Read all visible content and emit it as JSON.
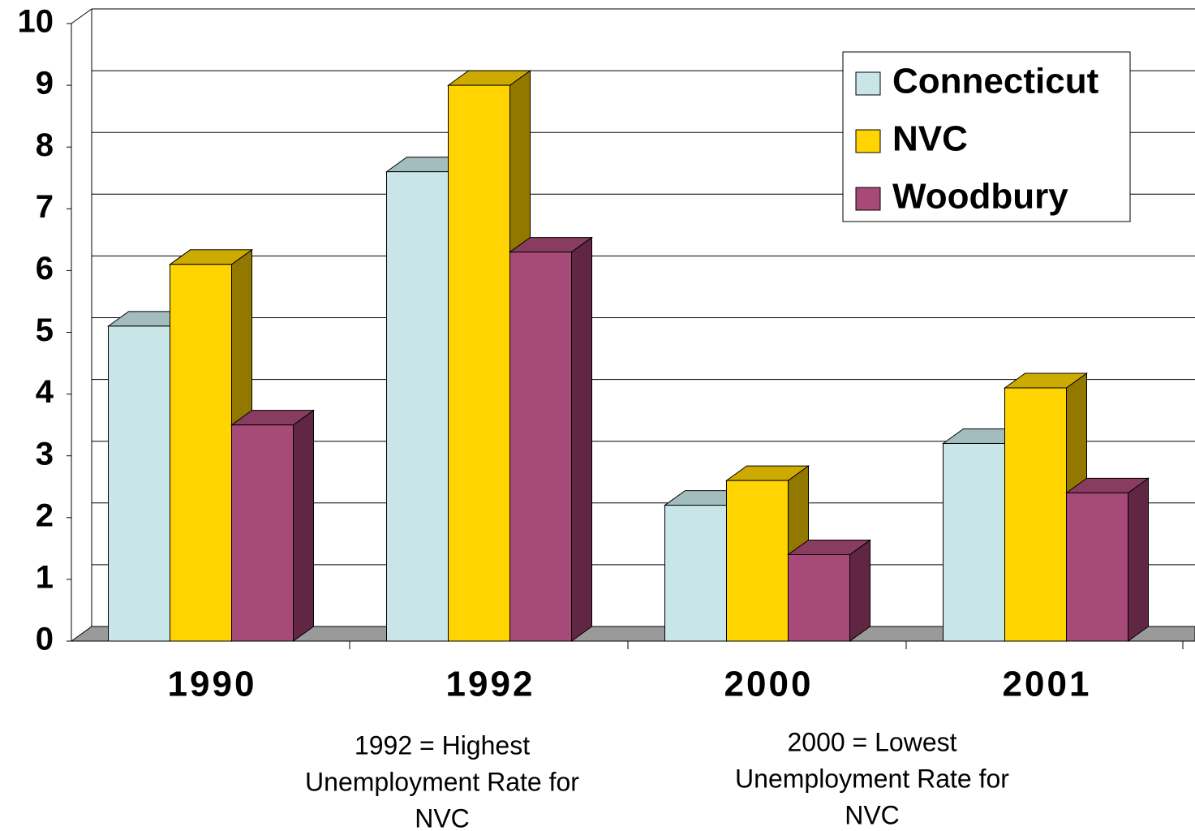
{
  "chart_data": {
    "type": "bar3d",
    "categories": [
      "1990",
      "1992",
      "2000",
      "2001"
    ],
    "series": [
      {
        "name": "Connecticut",
        "color": "#c8e6e8",
        "side": "#7e9799",
        "top": "#a3bcbe",
        "values": [
          5.1,
          7.6,
          2.2,
          3.2
        ]
      },
      {
        "name": "NVC",
        "color": "#ffd400",
        "side": "#937800",
        "top": "#ccaa00",
        "values": [
          6.1,
          9.0,
          2.6,
          4.1
        ]
      },
      {
        "name": "Woodbury",
        "color": "#a84a78",
        "side": "#612644",
        "top": "#873c60",
        "values": [
          3.5,
          6.3,
          1.4,
          2.4
        ]
      }
    ],
    "ylim": [
      0,
      10
    ],
    "yticks": [
      0,
      1,
      2,
      3,
      4,
      5,
      6,
      7,
      8,
      9,
      10
    ],
    "grid": true,
    "legend": "top-right",
    "annotations": [
      [
        "1992 = Highest",
        "Unemployment Rate for",
        "NVC"
      ],
      [
        "2000 = Lowest",
        "Unemployment Rate for",
        "NVC"
      ]
    ]
  }
}
